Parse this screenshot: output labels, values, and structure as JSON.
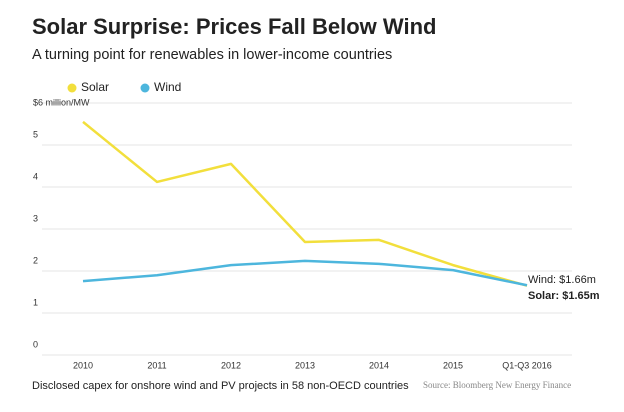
{
  "chart_data": {
    "type": "line",
    "title": "Solar Surprise: Prices Fall Below Wind",
    "subtitle": "A turning point for renewables in lower-income countries",
    "categories": [
      "2010",
      "2011",
      "2012",
      "2013",
      "2014",
      "2015",
      "Q1-Q3 2016"
    ],
    "series": [
      {
        "name": "Solar",
        "color": "#f2df3c",
        "values": [
          5.55,
          4.12,
          4.55,
          2.69,
          2.74,
          2.14,
          1.65
        ]
      },
      {
        "name": "Wind",
        "color": "#4db6dd",
        "values": [
          1.76,
          1.9,
          2.14,
          2.24,
          2.17,
          2.02,
          1.66
        ]
      }
    ],
    "ylim": [
      0,
      6
    ],
    "yticks": [
      0,
      1,
      2,
      3,
      4,
      5,
      {
        "value": 6,
        "label": "$6 million/MW"
      }
    ],
    "grid": true,
    "annotations": [
      "Wind: $1.66m",
      "Solar: $1.65m"
    ],
    "note": "Disclosed capex for onshore wind and PV projects in 58 non-OECD countries",
    "source": "Source: Bloomberg New Energy Finance"
  }
}
